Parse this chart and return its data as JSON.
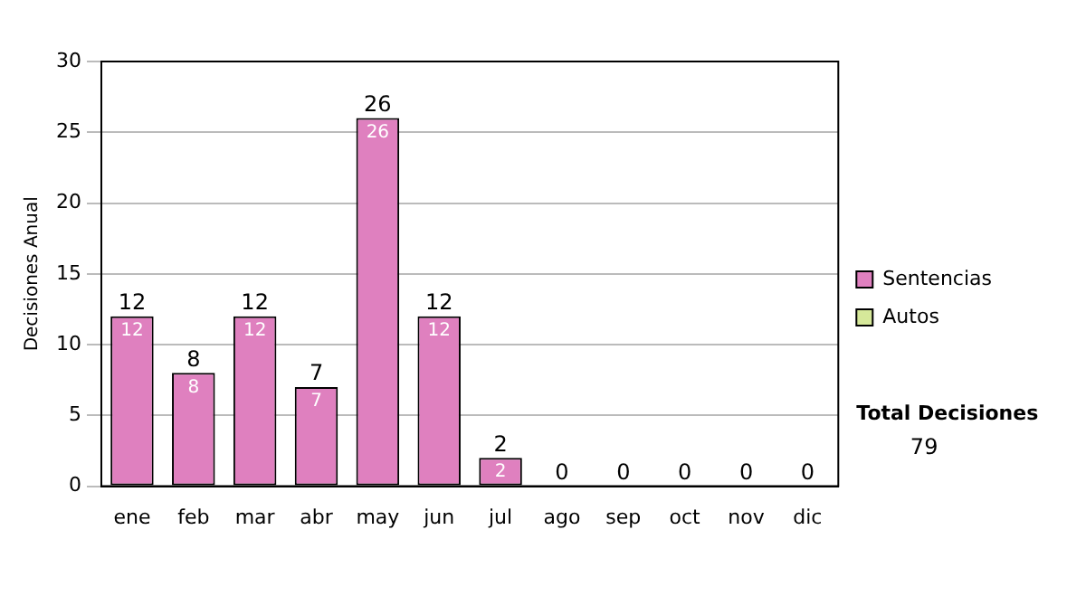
{
  "chart_data": {
    "type": "bar",
    "ylabel": "Decisiones Anual",
    "categories": [
      "ene",
      "feb",
      "mar",
      "abr",
      "may",
      "jun",
      "jul",
      "ago",
      "sep",
      "oct",
      "nov",
      "dic"
    ],
    "series": [
      {
        "name": "Sentencias",
        "color": "#df80bf",
        "values": [
          12,
          8,
          12,
          7,
          26,
          12,
          2,
          0,
          0,
          0,
          0,
          0
        ],
        "value_labels": [
          "12",
          "8",
          "12",
          "7",
          "26",
          "12",
          "2",
          null,
          null,
          null,
          null,
          null
        ]
      },
      {
        "name": "Autos",
        "color": "#d6e89a",
        "values": [
          0,
          0,
          0,
          0,
          0,
          0,
          0,
          0,
          0,
          0,
          0,
          0
        ]
      }
    ],
    "stacked": true,
    "totals": [
      "12",
      "8",
      "12",
      "7",
      "26",
      "12",
      "2",
      "0",
      "0",
      "0",
      "0",
      "0"
    ],
    "ylim": [
      0,
      30
    ],
    "yticks": [
      0,
      5,
      10,
      15,
      20,
      25,
      30
    ],
    "grid": "y",
    "legend": "right",
    "annotations": [
      "Total Decisiones",
      "79"
    ]
  }
}
